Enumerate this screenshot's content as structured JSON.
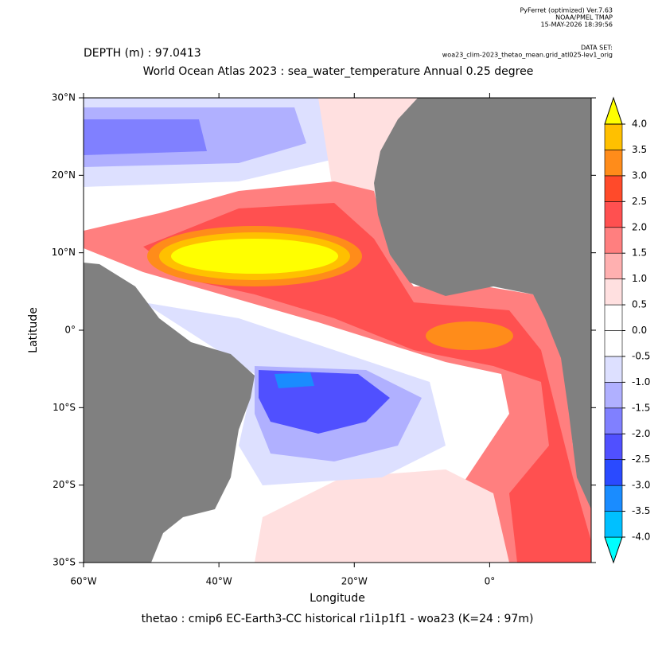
{
  "header": {
    "program": "PyFerret (optimized) Ver.7.63",
    "org": "NOAA/PMEL TMAP",
    "date": "15-MAY-2026 18:39:56",
    "dataset_label": "DATA SET:",
    "dataset": "woa23_clim-2023_thetao_mean.grid_atl025-lev1_orig"
  },
  "depth": "DEPTH (m) : 97.0413",
  "title": "World Ocean Atlas 2023 : sea_water_temperature Annual  0.25 degree",
  "map": {
    "xlabel": "Longitude",
    "ylabel": "Latitude",
    "xlim": [
      -60,
      15
    ],
    "ylim": [
      -30,
      30
    ],
    "xticks": [
      {
        "value": -60,
        "label": "60°W"
      },
      {
        "value": -40,
        "label": "40°W"
      },
      {
        "value": -20,
        "label": "20°W"
      },
      {
        "value": 0,
        "label": "0°"
      }
    ],
    "yticks": [
      {
        "value": -30,
        "label": "30°S"
      },
      {
        "value": -20,
        "label": "20°S"
      },
      {
        "value": -10,
        "label": "10°S"
      },
      {
        "value": 0,
        "label": "0°"
      },
      {
        "value": 10,
        "label": "10°N"
      },
      {
        "value": 20,
        "label": "20°N"
      },
      {
        "value": 30,
        "label": "30°N"
      }
    ]
  },
  "colorbar": {
    "levels": [
      {
        "value": -4,
        "label": "-4.0"
      },
      -3.5,
      {
        "value": -3,
        "label": "-3.0"
      },
      -2.5,
      {
        "value": -2,
        "label": "-2.0"
      },
      -1.5,
      {
        "value": -1,
        "label": "-1.0"
      },
      -0.5,
      {
        "value": 0,
        "label": "0.0"
      },
      0.5,
      {
        "value": 1,
        "label": "1.0"
      },
      1.5,
      {
        "value": 2,
        "label": "2.0"
      },
      2.5,
      {
        "value": 3,
        "label": "3.0"
      },
      3.5,
      {
        "value": 4,
        "label": "4.0"
      }
    ],
    "colors": [
      "#00ffff",
      "#00c0ff",
      "#1a8cff",
      "#2a4aff",
      "#5050ff",
      "#8080ff",
      "#b0b0ff",
      "#dde0ff",
      "#ffffff",
      "#ffffff",
      "#ffe0e0",
      "#ffb0b0",
      "#ff7f7f",
      "#ff5050",
      "#ff4a2a",
      "#ff8c1a",
      "#ffc000",
      "#ffff00"
    ]
  },
  "footer": "thetao : cmip6 EC-Earth3-CC historical r1i1p1f1 - woa23  (K=24 : 97m)"
}
